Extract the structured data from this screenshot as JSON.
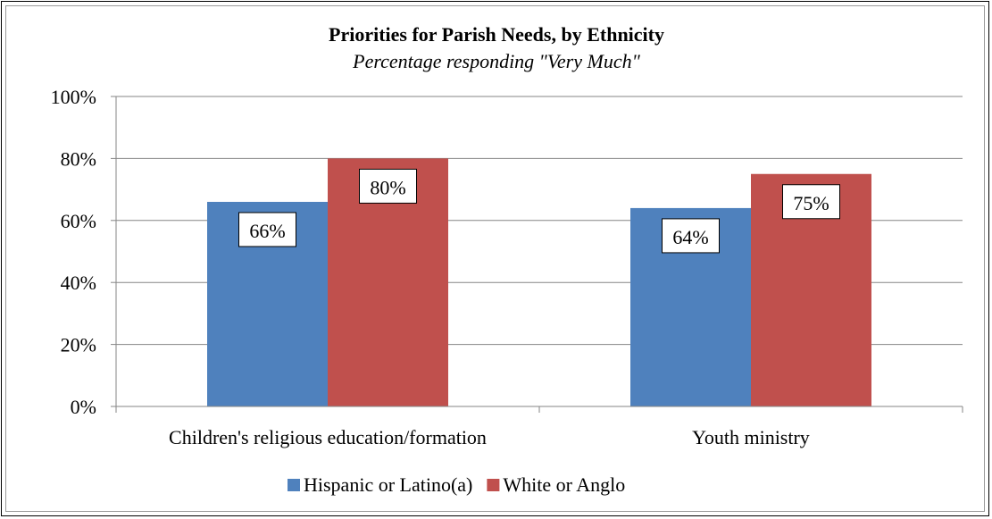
{
  "chart_data": {
    "type": "bar",
    "title": "Priorities for Parish Needs, by Ethnicity",
    "subtitle": "Percentage responding \"Very Much\"",
    "categories": [
      "Children's religious education/formation",
      "Youth ministry"
    ],
    "series": [
      {
        "name": "Hispanic or Latino(a)",
        "color": "#4f81bd",
        "values": [
          66,
          64
        ],
        "labels": [
          "66%",
          "64%"
        ]
      },
      {
        "name": "White or Anglo",
        "color": "#c0504d",
        "values": [
          80,
          75
        ],
        "labels": [
          "80%",
          "75%"
        ]
      }
    ],
    "ylim": [
      0,
      100
    ],
    "yticks": [
      0,
      20,
      40,
      60,
      80,
      100
    ],
    "ytick_labels": [
      "0%",
      "20%",
      "40%",
      "60%",
      "80%",
      "100%"
    ],
    "grid": true,
    "legend_position": "bottom",
    "xlabel": "",
    "ylabel": ""
  }
}
